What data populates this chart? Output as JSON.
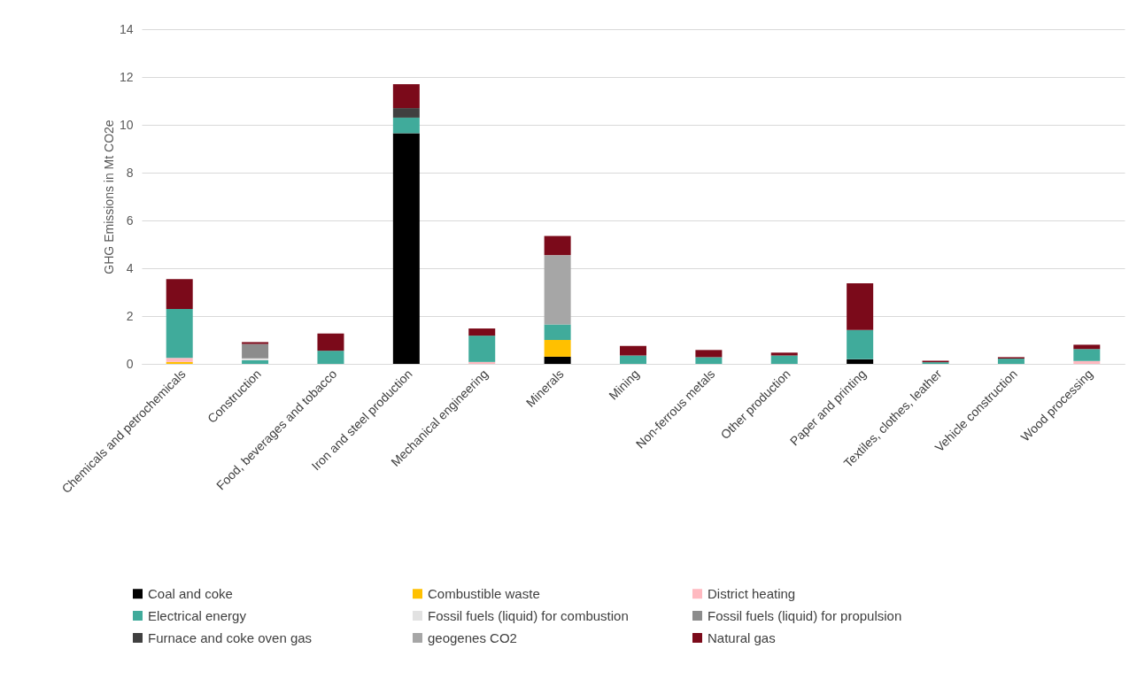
{
  "chart_data": {
    "type": "bar",
    "stacked": true,
    "ylabel": "GHG Emissions in Mt CO2e",
    "categories": [
      "Chemicals and petrochemicals",
      "Construction",
      "Food, beverages and tobacco",
      "Iron and steel production",
      "Mechanical engineering",
      "Minerals",
      "Mining",
      "Non-ferrous metals",
      "Other production",
      "Paper and printing",
      "Textiles, clothes, leather",
      "Vehicle construction",
      "Wood processing"
    ],
    "ylim": [
      0,
      14
    ],
    "yticks": [
      0,
      2,
      4,
      6,
      8,
      10,
      12,
      14
    ],
    "grid": "y",
    "legend": "bottom",
    "series": [
      {
        "name": "Coal and coke",
        "color": "#000000",
        "values": [
          null,
          null,
          null,
          9.65,
          null,
          0.3,
          null,
          null,
          null,
          0.19,
          null,
          null,
          null
        ]
      },
      {
        "name": "Combustible waste",
        "color": "#ffc000",
        "values": [
          0.08,
          null,
          null,
          null,
          null,
          0.7,
          null,
          null,
          null,
          null,
          null,
          null,
          null
        ]
      },
      {
        "name": "District heating",
        "color": "#ffb9c0",
        "values": [
          0.17,
          null,
          null,
          null,
          0.08,
          null,
          null,
          null,
          null,
          null,
          null,
          null,
          0.12
        ]
      },
      {
        "name": "Electrical energy",
        "color": "#40ab9b",
        "values": [
          2.05,
          0.15,
          0.55,
          0.65,
          1.1,
          0.65,
          0.35,
          0.28,
          0.35,
          1.23,
          0.07,
          0.22,
          0.5
        ]
      },
      {
        "name": "Fossil fuels (liquid) for combustion",
        "color": "#e2e2e2",
        "values": [
          null,
          0.08,
          null,
          null,
          null,
          null,
          null,
          null,
          null,
          null,
          null,
          null,
          null
        ]
      },
      {
        "name": "Fossil fuels (liquid) for propulsion",
        "color": "#8c8c8c",
        "values": [
          null,
          0.6,
          null,
          null,
          null,
          null,
          null,
          null,
          null,
          null,
          null,
          null,
          null
        ]
      },
      {
        "name": "Furnace and coke oven gas",
        "color": "#404040",
        "values": [
          null,
          null,
          null,
          0.4,
          null,
          null,
          null,
          null,
          null,
          null,
          null,
          null,
          null
        ]
      },
      {
        "name": "geogenes CO2",
        "color": "#a6a6a6",
        "values": [
          null,
          null,
          null,
          null,
          null,
          2.9,
          null,
          null,
          null,
          null,
          null,
          null,
          null
        ]
      },
      {
        "name": "Natural gas",
        "color": "#7b0a1a",
        "values": [
          1.25,
          0.08,
          0.72,
          1.0,
          0.3,
          0.8,
          0.4,
          0.3,
          0.12,
          1.95,
          0.06,
          0.06,
          0.18
        ]
      }
    ]
  }
}
